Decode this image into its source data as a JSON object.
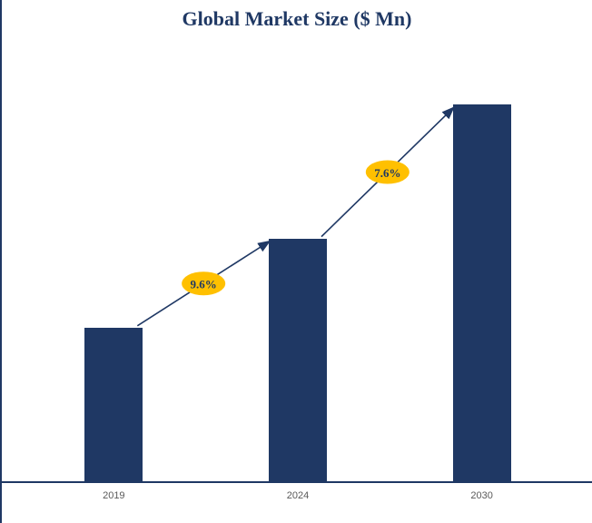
{
  "chart_data": {
    "type": "bar",
    "title": "Global Market Size ($ Mn)",
    "categories": [
      "2019",
      "2024",
      "2030"
    ],
    "values": [
      100,
      158,
      245
    ],
    "ylim": [
      0,
      260
    ],
    "xlabel": "",
    "ylabel": "",
    "grid": false,
    "legend": "none",
    "y_axis_visible": false,
    "colors": {
      "bar": "#1F3864",
      "arrow": "#1F3864",
      "accent": "#FFC000",
      "annotation_text": "#1F3864",
      "tick_text": "#595959",
      "frame_line": "#1F3864"
    },
    "growth_annotations": [
      {
        "label": "9.6%",
        "from": "2019",
        "to": "2024"
      },
      {
        "label": "7.6%",
        "from": "2024",
        "to": "2030"
      }
    ]
  }
}
